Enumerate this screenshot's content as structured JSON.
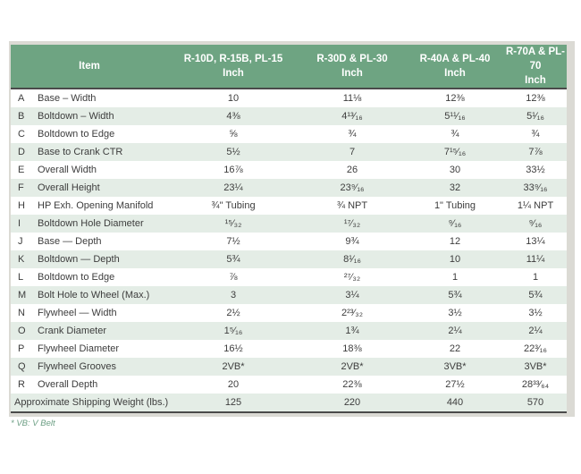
{
  "colors": {
    "header_green": "#6ea482",
    "row_alt": "#e4ede6",
    "line_dark": "#4a4a4a",
    "border_gray": "#dbdad4",
    "text_dark": "#3d3d3d",
    "footnote_green": "#6b9e83"
  },
  "footnote": "* VB: V Belt",
  "table": {
    "header": {
      "item_label": "Item",
      "columns": [
        {
          "line1": "R-10D, R-15B, PL-15",
          "line2": "Inch"
        },
        {
          "line1": "R-30D & PL-30",
          "line2": "Inch"
        },
        {
          "line1": "R-40A & PL-40",
          "line2": "Inch"
        },
        {
          "line1": "R-70A & PL-70",
          "line2": "Inch"
        }
      ]
    },
    "rows": [
      {
        "letter": "A",
        "item": "Base – Width",
        "values": [
          "10",
          "11⅛",
          "12⅜",
          "12⅜"
        ]
      },
      {
        "letter": "B",
        "item": "Boltdown – Width",
        "values": [
          "4⅜",
          "4¹³⁄₁₆",
          "5¹¹⁄₁₆",
          "5¹⁄₁₆"
        ]
      },
      {
        "letter": "C",
        "item": "Boltdown to Edge",
        "values": [
          "⅝",
          "¾",
          "¾",
          "¾"
        ]
      },
      {
        "letter": "D",
        "item": "Base to Crank CTR",
        "values": [
          "5½",
          "7",
          "7¹⁵⁄₁₆",
          "7⅞"
        ]
      },
      {
        "letter": "E",
        "item": "Overall Width",
        "values": [
          "16⅞",
          "26",
          "30",
          "33½"
        ]
      },
      {
        "letter": "F",
        "item": "Overall Height",
        "values": [
          "23¼",
          "23⁹⁄₁₆",
          "32",
          "33⁹⁄₁₆"
        ]
      },
      {
        "letter": "H",
        "item": "HP Exh. Opening Manifold",
        "values": [
          "¾\" Tubing",
          "¾ NPT",
          "1\" Tubing",
          "1¼ NPT"
        ]
      },
      {
        "letter": "I",
        "item": "Boltdown Hole Diameter",
        "values": [
          "¹⁵⁄₃₂",
          "¹⁷⁄₃₂",
          "⁹⁄₁₆",
          "⁹⁄₁₆"
        ]
      },
      {
        "letter": "J",
        "item": "Base — Depth",
        "values": [
          "7½",
          "9¾",
          "12",
          "13¼"
        ]
      },
      {
        "letter": "K",
        "item": "Boltdown — Depth",
        "values": [
          "5¾",
          "8¹⁄₁₆",
          "10",
          "11¼"
        ]
      },
      {
        "letter": "L",
        "item": "Boltdown to Edge",
        "values": [
          "⅞",
          "²⁷⁄₃₂",
          "1",
          "1"
        ]
      },
      {
        "letter": "M",
        "item": "Bolt Hole to Wheel (Max.)",
        "values": [
          "3",
          "3¼",
          "5¾",
          "5¾"
        ]
      },
      {
        "letter": "N",
        "item": "Flywheel — Width",
        "values": [
          "2½",
          "2²³⁄₃₂",
          "3½",
          "3½"
        ]
      },
      {
        "letter": "O",
        "item": "Crank Diameter",
        "values": [
          "1⁵⁄₁₆",
          "1¾",
          "2¼",
          "2¼"
        ]
      },
      {
        "letter": "P",
        "item": "Flywheel Diameter",
        "values": [
          "16½",
          "18⅜",
          "22",
          "22³⁄₁₆"
        ]
      },
      {
        "letter": "Q",
        "item": "Flywheel Grooves",
        "values": [
          "2VB*",
          "2VB*",
          "3VB*",
          "3VB*"
        ]
      },
      {
        "letter": "R",
        "item": "Overall Depth",
        "values": [
          "20",
          "22⅜",
          "27½",
          "28³³⁄₆₄"
        ]
      }
    ],
    "footer_row": {
      "label": "Approximate Shipping Weight (lbs.)",
      "values": [
        "125",
        "220",
        "440",
        "570"
      ]
    }
  }
}
